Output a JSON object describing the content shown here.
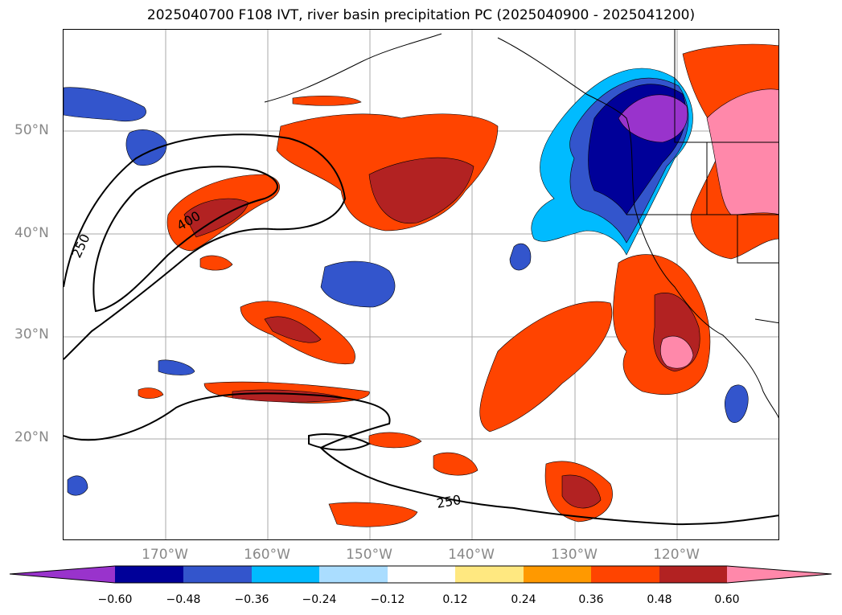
{
  "title": "2025040700 F108 IVT, river basin precipitation PC (2025040900 - 2025041200)",
  "lat_labels": [
    "50°N",
    "40°N",
    "30°N",
    "20°N"
  ],
  "lon_labels": [
    "170°W",
    "160°W",
    "150°W",
    "140°W",
    "130°W",
    "120°W"
  ],
  "contour_labels": [
    "250",
    "400",
    "250"
  ],
  "colorbar": {
    "ticks": [
      "−0.60",
      "−0.48",
      "−0.36",
      "−0.24",
      "−0.12",
      "0.12",
      "0.24",
      "0.36",
      "0.48",
      "0.60"
    ],
    "colors": [
      "#9933cc",
      "#000099",
      "#3355cc",
      "#00bbff",
      "#aaddff",
      "#ffffff",
      "#ffe880",
      "#ff9900",
      "#ff4400",
      "#b22222",
      "#ff88aa"
    ]
  },
  "palette": {
    "neg_light": "#aaddff",
    "neg_cyan": "#00bbff",
    "neg_blue": "#3355cc",
    "neg_navy": "#000099",
    "neg_purple": "#9933cc",
    "pos_yellow": "#ffe880",
    "pos_orange": "#ff9900",
    "pos_red": "#ff4400",
    "pos_dark": "#b22222",
    "pos_pink": "#ff88aa"
  }
}
